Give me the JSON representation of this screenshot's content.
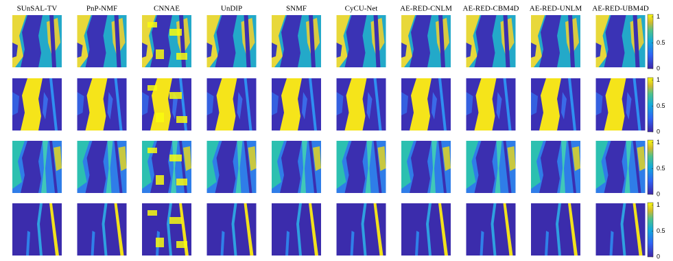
{
  "columns": [
    "SUnSAL-TV",
    "PnP-NMF",
    "CNNAE",
    "UnDIP",
    "SNMF",
    "CyCU-Net",
    "AE-RED-CNLM",
    "AE-RED-CBM4D",
    "AE-RED-UNLM",
    "AE-RED-UBM4D"
  ],
  "colorbars": [
    {
      "clim": [
        0,
        1.05
      ],
      "ticks": [
        0,
        0.5,
        1
      ]
    },
    {
      "clim": [
        0,
        1.05
      ],
      "ticks": [
        0,
        0.5,
        1
      ]
    },
    {
      "clim": [
        0,
        1.05
      ],
      "ticks": [
        0,
        0.5,
        1
      ]
    },
    {
      "clim": [
        0,
        1.05
      ],
      "ticks": [
        0,
        0.5,
        1
      ]
    }
  ]
}
